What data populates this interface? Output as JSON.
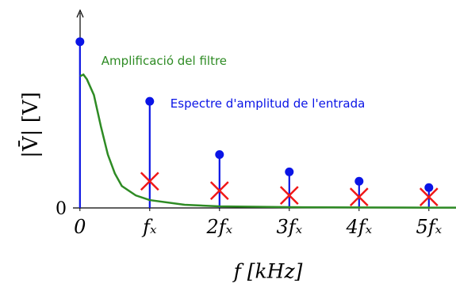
{
  "chart_data": {
    "type": "stem",
    "y_label": "|V̄| [V]",
    "x_label": "f [kHz]",
    "x": [
      0,
      1,
      2,
      3,
      4,
      5
    ],
    "xlim": [
      -0.1,
      5.4
    ],
    "ylim": [
      0,
      1.25
    ],
    "xticks": [
      0,
      {
        "value": 1,
        "label": "fₓ"
      },
      {
        "value": 2,
        "label": "2fₓ"
      },
      {
        "value": 3,
        "label": "3fₓ"
      },
      {
        "value": 4,
        "label": "4fₓ"
      },
      {
        "value": 5,
        "label": "5fₓ"
      }
    ],
    "yticks": [
      0
    ],
    "series": [
      {
        "name": "Espectre d'amplitud de l'entrada",
        "color": "#0a14e6",
        "type": "stem",
        "values": [
          1.06,
          0.68,
          0.34,
          0.23,
          0.17,
          0.13
        ]
      },
      {
        "color": "#f01818",
        "type": "x-marker",
        "values": [
          0.32,
          0.17,
          0.11,
          0.08,
          0.07,
          0.07
        ]
      },
      {
        "name": "Amplificació del filtre",
        "color": "#2e8b24",
        "type": "line",
        "x": [
          0,
          0.05,
          0.1,
          0.2,
          0.3,
          0.4,
          0.5,
          0.6,
          0.8,
          1,
          1.5,
          2,
          3,
          4,
          5,
          5.4
        ],
        "values": [
          0.84,
          0.85,
          0.82,
          0.72,
          0.52,
          0.34,
          0.22,
          0.14,
          0.08,
          0.05,
          0.02,
          0.01,
          0.005,
          0.003,
          0.002,
          0.002
        ]
      }
    ]
  }
}
